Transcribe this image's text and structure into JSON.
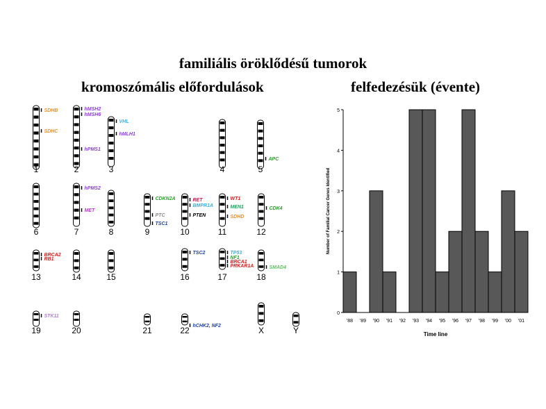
{
  "title": {
    "line1": "familiális öröklődésű tumorok",
    "left": "kromoszómális előfordulások",
    "right": "felfedezésük (évente)"
  },
  "karyotype": {
    "chromosomes": [
      {
        "label": "1",
        "genes": [
          {
            "name": "SDHB",
            "color": "#e8902a"
          },
          {
            "name": "SDHC",
            "color": "#e8902a"
          }
        ]
      },
      {
        "label": "2",
        "genes": [
          {
            "name": "hMSH2",
            "color": "#8a3fd0"
          },
          {
            "name": "hMSH6",
            "color": "#8a3fd0"
          },
          {
            "name": "hPMS1",
            "color": "#8a3fd0"
          }
        ]
      },
      {
        "label": "3",
        "genes": [
          {
            "name": "VHL",
            "color": "#3ab0e0"
          },
          {
            "name": "hMLH1",
            "color": "#8a3fd0"
          }
        ]
      },
      {
        "label": "4",
        "genes": []
      },
      {
        "label": "5",
        "genes": [
          {
            "name": "APC",
            "color": "#2aa02a"
          }
        ]
      },
      {
        "label": "6",
        "genes": []
      },
      {
        "label": "7",
        "genes": [
          {
            "name": "hPMS2",
            "color": "#8a3fd0"
          },
          {
            "name": "MET",
            "color": "#b040c0"
          }
        ]
      },
      {
        "label": "8",
        "genes": []
      },
      {
        "label": "9",
        "genes": [
          {
            "name": "CDKN2A",
            "color": "#2aa02a"
          },
          {
            "name": "PTC",
            "color": "#888888"
          },
          {
            "name": "TSC1",
            "color": "#2040a0"
          }
        ]
      },
      {
        "label": "10",
        "genes": [
          {
            "name": "RET",
            "color": "#d01050"
          },
          {
            "name": "BMPR1A",
            "color": "#3ab0e0"
          },
          {
            "name": "PTEN",
            "color": "#000000"
          }
        ]
      },
      {
        "label": "11",
        "genes": [
          {
            "name": "WT1",
            "color": "#d02020"
          },
          {
            "name": "MEN1",
            "color": "#20a060"
          },
          {
            "name": "SDHD",
            "color": "#e8902a"
          }
        ]
      },
      {
        "label": "12",
        "genes": [
          {
            "name": "CDK4",
            "color": "#2aa02a"
          }
        ]
      },
      {
        "label": "13",
        "genes": [
          {
            "name": "BRCA2",
            "color": "#d02020"
          },
          {
            "name": "RB1",
            "color": "#d02020"
          }
        ]
      },
      {
        "label": "14",
        "genes": []
      },
      {
        "label": "15",
        "genes": []
      },
      {
        "label": "16",
        "genes": [
          {
            "name": "TSC2",
            "color": "#2040a0"
          }
        ]
      },
      {
        "label": "17",
        "genes": [
          {
            "name": "TP53",
            "color": "#3ab0e0"
          },
          {
            "name": "NF1",
            "color": "#2aa02a"
          },
          {
            "name": "BRCA1",
            "color": "#d02020"
          },
          {
            "name": "PRKAR1A",
            "color": "#d02020"
          }
        ]
      },
      {
        "label": "18",
        "genes": [
          {
            "name": "SMAD4",
            "color": "#60c060"
          }
        ]
      },
      {
        "label": "19",
        "genes": [
          {
            "name": "STK11",
            "color": "#b080d0"
          }
        ]
      },
      {
        "label": "20",
        "genes": []
      },
      {
        "label": "21",
        "genes": []
      },
      {
        "label": "22",
        "genes": [
          {
            "name": "hCHK2, NF2",
            "color": "#2040a0"
          }
        ]
      },
      {
        "label": "X",
        "genes": []
      },
      {
        "label": "Y",
        "genes": []
      }
    ]
  },
  "chart_data": {
    "type": "bar",
    "categories": [
      "'88",
      "'89",
      "'90",
      "'91",
      "'92",
      "'93",
      "'94",
      "'95",
      "'96",
      "'97",
      "'98",
      "'99",
      "'00",
      "'01"
    ],
    "values": [
      1,
      0,
      3,
      1,
      0,
      5,
      5,
      1,
      2,
      5,
      2,
      1,
      3,
      2
    ],
    "xlabel": "Time line",
    "ylabel": "Number of Familial Cancer Genes Identified",
    "ylim": [
      0,
      5
    ],
    "yticks": [
      "0",
      "1",
      "2",
      "3",
      "4",
      "5"
    ],
    "bar_color": "#585858",
    "grid": false
  }
}
